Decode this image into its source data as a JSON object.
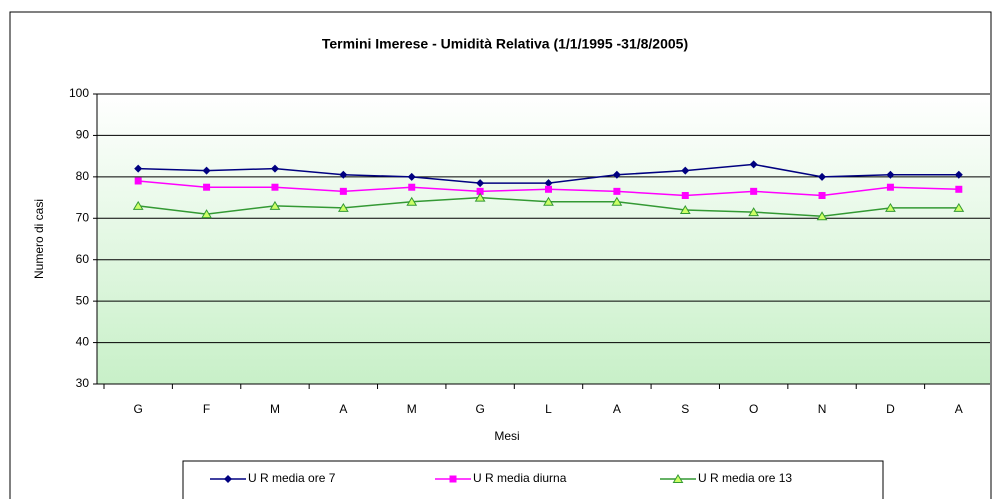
{
  "chart_data": {
    "type": "line",
    "title": "Termini Imerese - Umidità Relativa (1/1/1995 -31/8/2005)",
    "x_label": "Mesi",
    "y_label": "Numero di casi",
    "categories": [
      "G",
      "F",
      "M",
      "A",
      "M",
      "G",
      "L",
      "A",
      "S",
      "O",
      "N",
      "D",
      "A"
    ],
    "series": [
      {
        "name": "U R media ore 7",
        "color": "#000080",
        "marker": "diamond",
        "values": [
          82,
          81.5,
          82,
          80.5,
          80,
          78.5,
          78.5,
          80.5,
          81.5,
          83,
          80,
          80.5,
          80.5
        ]
      },
      {
        "name": "U R media diurna",
        "color": "#ff00ff",
        "marker": "square",
        "values": [
          79,
          77.5,
          77.5,
          76.5,
          77.5,
          76.5,
          77,
          76.5,
          75.5,
          76.5,
          75.5,
          77.5,
          77
        ]
      },
      {
        "name": "U R media ore 13",
        "color": "#339933",
        "marker": "triangle",
        "values": [
          73,
          71,
          73,
          72.5,
          74,
          75,
          74,
          74,
          72,
          71.5,
          70.5,
          72.5,
          72.5
        ]
      }
    ],
    "ylim": [
      30,
      100
    ],
    "yticks": [
      30,
      40,
      50,
      60,
      70,
      80,
      90,
      100
    ],
    "grid": true,
    "legend": "bottom"
  }
}
